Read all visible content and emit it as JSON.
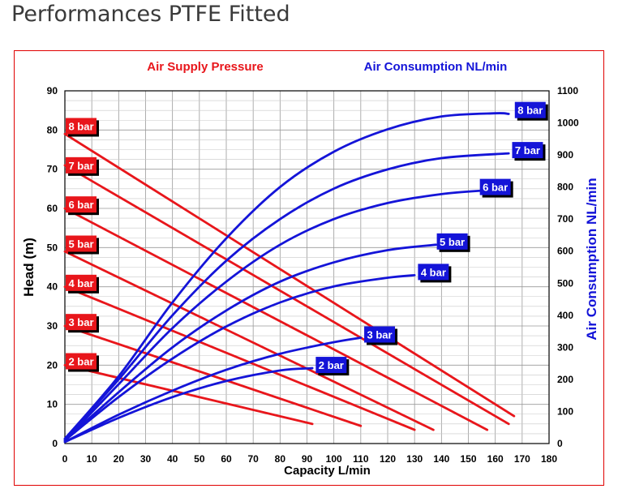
{
  "page": {
    "title": "Performances PTFE Fitted"
  },
  "chart_data": {
    "type": "line",
    "legend_left": "Air Supply Pressure",
    "legend_right": "Air Consumption NL/min",
    "xlabel": "Capacity L/min",
    "ylabel": "Head (m)",
    "y2label": "Air Consumption NL/min",
    "xlim": [
      0,
      180
    ],
    "ylim": [
      0,
      90
    ],
    "y2lim": [
      0,
      1100
    ],
    "xticks": [
      0,
      10,
      20,
      30,
      40,
      50,
      60,
      70,
      80,
      90,
      100,
      110,
      120,
      130,
      140,
      150,
      160,
      170,
      180
    ],
    "yticks": [
      0,
      10,
      20,
      30,
      40,
      50,
      60,
      70,
      80,
      90
    ],
    "y2ticks": [
      0,
      100,
      200,
      300,
      400,
      500,
      600,
      700,
      800,
      900,
      1000,
      1100
    ],
    "grid": true,
    "colors": {
      "pressure": "#e8161b",
      "air": "#1414d8",
      "frame": "#e00000"
    },
    "head_series": [
      {
        "name": "8 bar",
        "label_y": 81,
        "points": [
          [
            0,
            79
          ],
          [
            167,
            7
          ]
        ]
      },
      {
        "name": "7 bar",
        "label_y": 71,
        "points": [
          [
            0,
            71
          ],
          [
            165,
            5
          ]
        ]
      },
      {
        "name": "6 bar",
        "label_y": 61,
        "points": [
          [
            0,
            60
          ],
          [
            157,
            3.5
          ]
        ]
      },
      {
        "name": "5 bar",
        "label_y": 51,
        "points": [
          [
            0,
            49
          ],
          [
            137,
            3.5
          ]
        ]
      },
      {
        "name": "4 bar",
        "label_y": 41,
        "points": [
          [
            0,
            40
          ],
          [
            130,
            3.5
          ]
        ]
      },
      {
        "name": "3 bar",
        "label_y": 31,
        "points": [
          [
            0,
            30
          ],
          [
            110,
            4.5
          ]
        ]
      },
      {
        "name": "2 bar",
        "label_y": 21,
        "points": [
          [
            0,
            20
          ],
          [
            92,
            5
          ]
        ]
      }
    ],
    "air_series": [
      {
        "name": "8 bar",
        "label_x": 173,
        "end_x": 165,
        "end_y": 1030,
        "curve": [
          [
            0,
            15
          ],
          [
            20,
            210
          ],
          [
            40,
            440
          ],
          [
            60,
            640
          ],
          [
            80,
            800
          ],
          [
            100,
            910
          ],
          [
            120,
            980
          ],
          [
            140,
            1020
          ],
          [
            160,
            1030
          ],
          [
            165,
            1028
          ]
        ]
      },
      {
        "name": "7 bar",
        "label_x": 172,
        "end_x": 165,
        "end_y": 905,
        "curve": [
          [
            0,
            15
          ],
          [
            20,
            200
          ],
          [
            40,
            400
          ],
          [
            60,
            570
          ],
          [
            80,
            700
          ],
          [
            100,
            795
          ],
          [
            120,
            855
          ],
          [
            140,
            890
          ],
          [
            165,
            905
          ]
        ]
      },
      {
        "name": "6 bar",
        "label_x": 160,
        "end_x": 157,
        "end_y": 790,
        "curve": [
          [
            0,
            10
          ],
          [
            20,
            185
          ],
          [
            40,
            360
          ],
          [
            60,
            505
          ],
          [
            80,
            620
          ],
          [
            100,
            700
          ],
          [
            120,
            750
          ],
          [
            140,
            778
          ],
          [
            157,
            790
          ]
        ]
      },
      {
        "name": "5 bar",
        "label_x": 144,
        "end_x": 138,
        "end_y": 620,
        "curve": [
          [
            0,
            10
          ],
          [
            20,
            160
          ],
          [
            40,
            300
          ],
          [
            60,
            415
          ],
          [
            80,
            505
          ],
          [
            100,
            565
          ],
          [
            120,
            603
          ],
          [
            138,
            620
          ]
        ]
      },
      {
        "name": "4 bar",
        "label_x": 137,
        "end_x": 130,
        "end_y": 525,
        "curve": [
          [
            0,
            10
          ],
          [
            20,
            145
          ],
          [
            40,
            265
          ],
          [
            60,
            365
          ],
          [
            80,
            440
          ],
          [
            100,
            490
          ],
          [
            120,
            517
          ],
          [
            130,
            525
          ]
        ]
      },
      {
        "name": "3 bar",
        "label_x": 117,
        "end_x": 110,
        "end_y": 330,
        "curve": [
          [
            0,
            5
          ],
          [
            20,
            90
          ],
          [
            40,
            165
          ],
          [
            60,
            230
          ],
          [
            80,
            280
          ],
          [
            100,
            316
          ],
          [
            110,
            330
          ]
        ]
      },
      {
        "name": "2 bar",
        "label_x": 99,
        "end_x": 92,
        "end_y": 235,
        "curve": [
          [
            0,
            5
          ],
          [
            20,
            80
          ],
          [
            40,
            145
          ],
          [
            60,
            195
          ],
          [
            80,
            228
          ],
          [
            92,
            235
          ]
        ]
      }
    ]
  }
}
